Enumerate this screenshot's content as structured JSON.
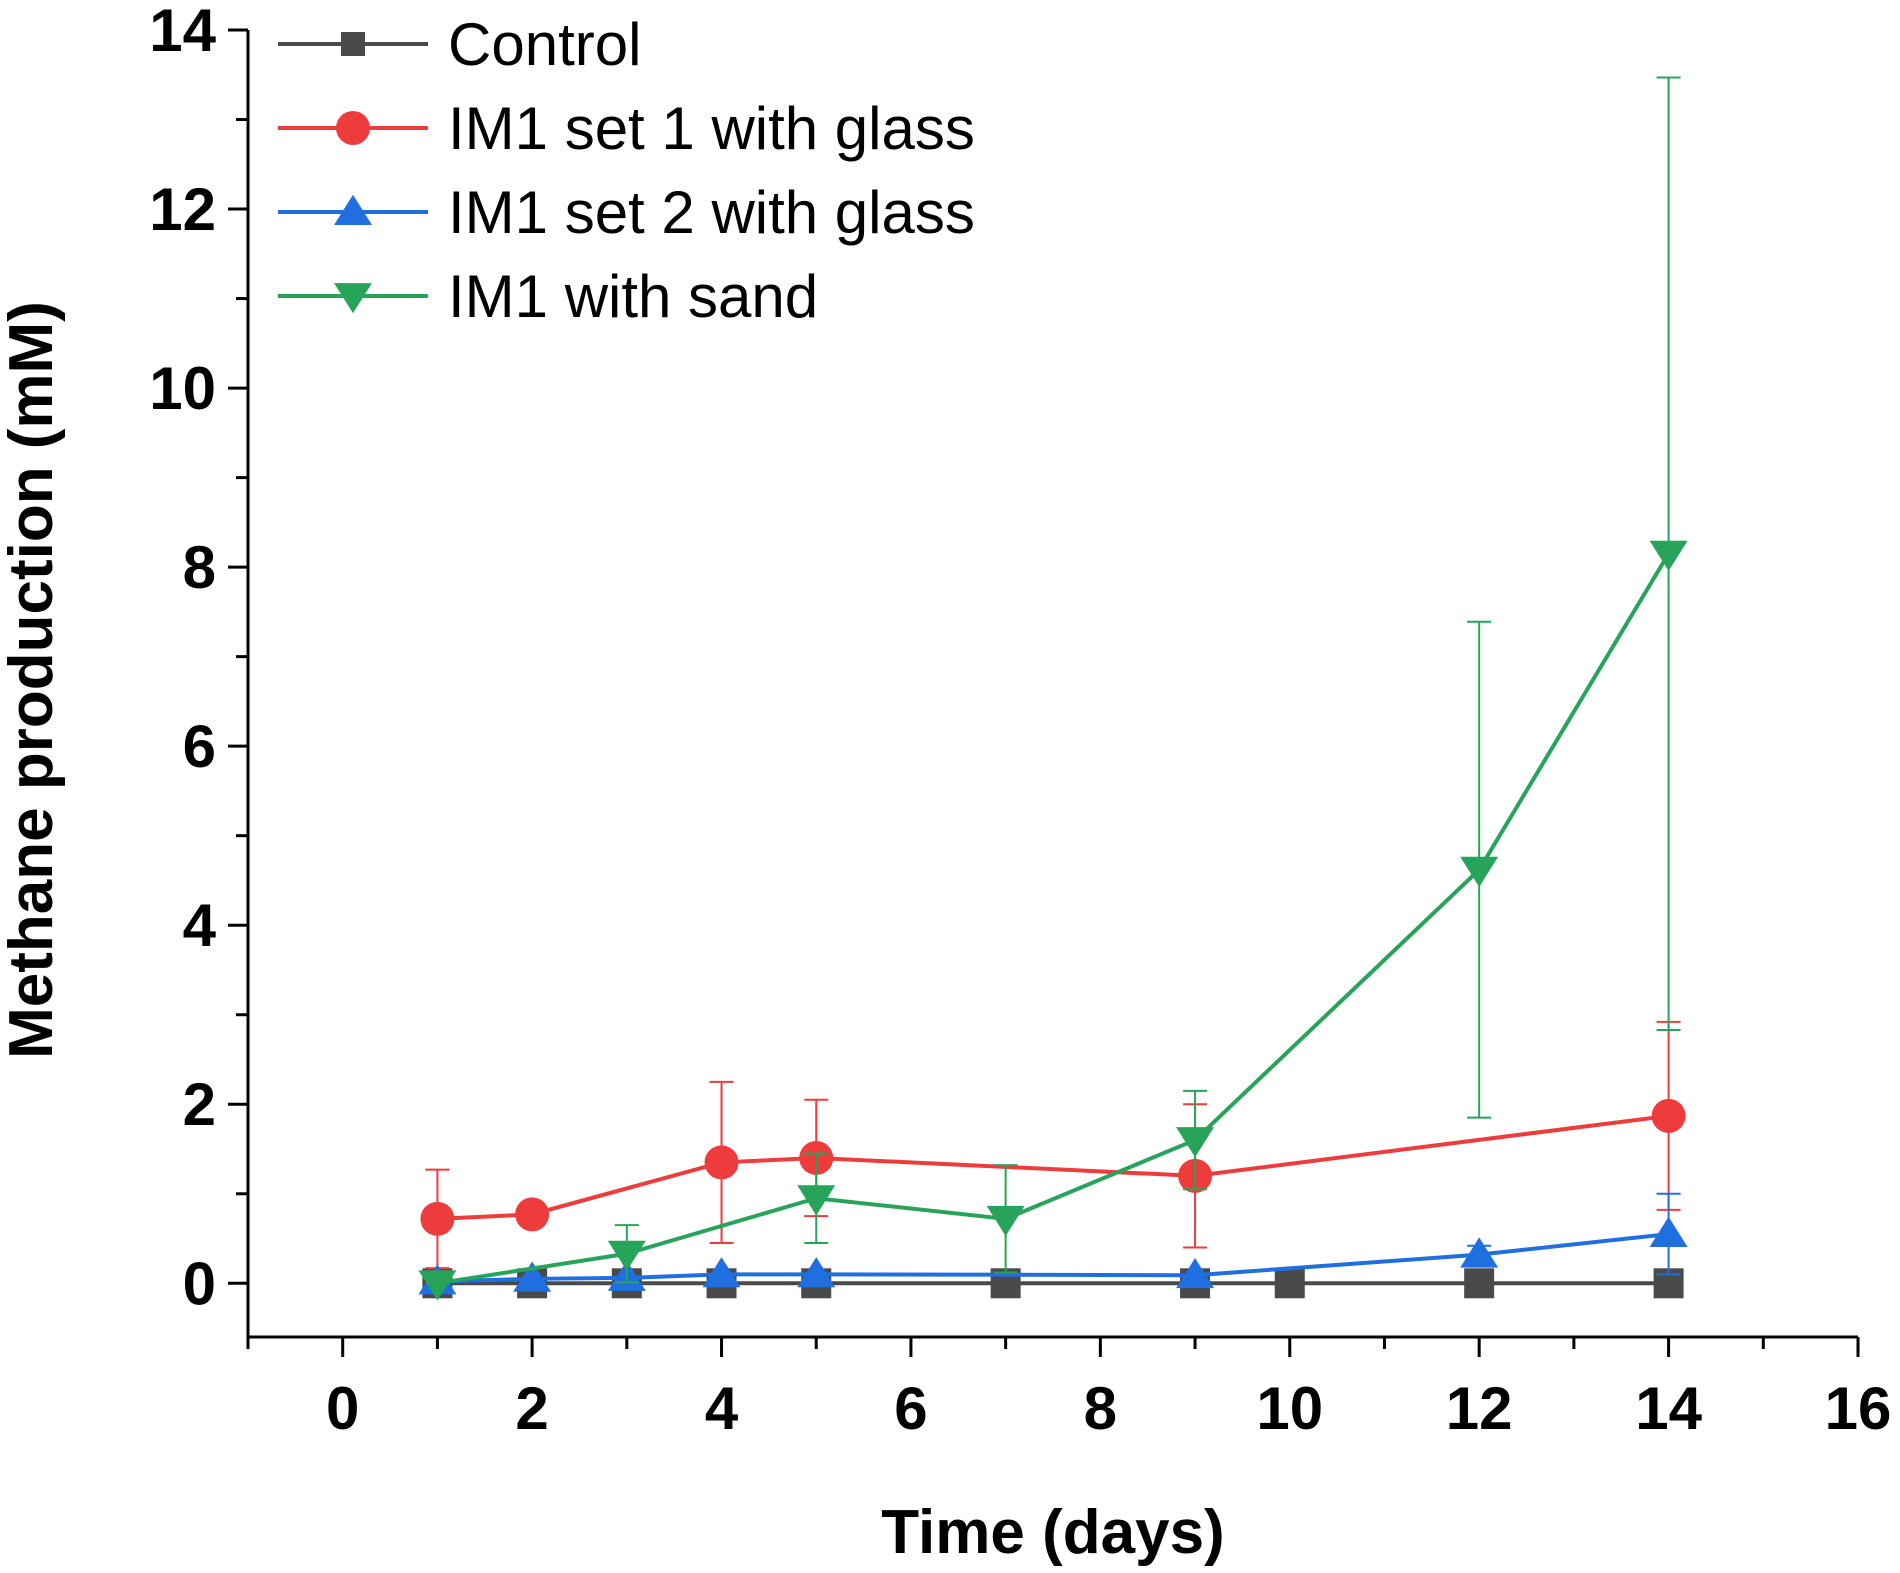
{
  "chart_data": {
    "type": "line",
    "title": "",
    "xlabel": "Time (days)",
    "ylabel": "Methane production (mM)",
    "xlim": [
      -1,
      16
    ],
    "ylim": [
      -0.6,
      14
    ],
    "xticks": [
      0,
      2,
      4,
      6,
      8,
      10,
      12,
      14,
      16
    ],
    "yticks": [
      0,
      2,
      4,
      6,
      8,
      10,
      12,
      14
    ],
    "grid": false,
    "legend_position": "top-left",
    "series": [
      {
        "name": "Control",
        "color": "#4a4a4a",
        "marker": "square",
        "x": [
          1,
          2,
          3,
          4,
          5,
          7,
          9,
          10,
          12,
          14
        ],
        "y": [
          0,
          0,
          0,
          0,
          0,
          0,
          0,
          0,
          0,
          0
        ],
        "err": [
          0,
          0,
          0,
          0,
          0,
          0,
          0,
          0,
          0,
          0
        ]
      },
      {
        "name": "IM1 set 1 with glass",
        "color": "#ee3b3b",
        "marker": "circle",
        "x": [
          1,
          2,
          4,
          5,
          9,
          14
        ],
        "y": [
          0.72,
          0.77,
          1.35,
          1.4,
          1.2,
          1.87
        ],
        "err": [
          0.55,
          0,
          0.9,
          0.65,
          0.8,
          1.05
        ]
      },
      {
        "name": "IM1 set 2 with glass",
        "color": "#1f6fe0",
        "marker": "triangle-up",
        "x": [
          1,
          2,
          3,
          4,
          5,
          9,
          12,
          14
        ],
        "y": [
          0.02,
          0.05,
          0.06,
          0.1,
          0.1,
          0.09,
          0.32,
          0.55
        ],
        "err": [
          0,
          0,
          0,
          0,
          0,
          0,
          0.1,
          0.45
        ]
      },
      {
        "name": "IM1 with sand",
        "color": "#27a45a",
        "marker": "triangle-down",
        "x": [
          1,
          3,
          5,
          7,
          9,
          12,
          14
        ],
        "y": [
          0,
          0.33,
          0.95,
          0.72,
          1.6,
          4.62,
          8.15
        ],
        "err": [
          0,
          0.32,
          0.5,
          0.6,
          0.55,
          2.77,
          5.32
        ]
      }
    ]
  }
}
